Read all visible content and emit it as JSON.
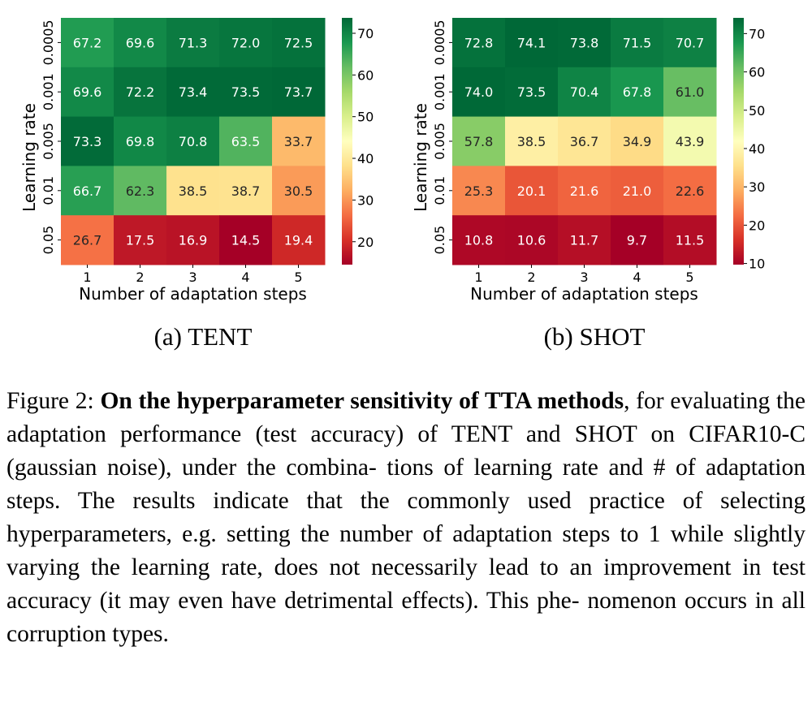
{
  "chart_data": [
    {
      "type": "heatmap",
      "caption": "(a) TENT",
      "xlabel": "Number of adaptation steps",
      "ylabel": "Learning rate",
      "x": [
        "1",
        "2",
        "3",
        "4",
        "5"
      ],
      "y": [
        "0.0005",
        "0.001",
        "0.005",
        "0.01",
        "0.05"
      ],
      "values": [
        [
          67.2,
          69.6,
          71.3,
          72.0,
          72.5
        ],
        [
          69.6,
          72.2,
          73.4,
          73.5,
          73.7
        ],
        [
          73.3,
          69.8,
          70.8,
          63.5,
          33.7
        ],
        [
          66.7,
          62.3,
          38.5,
          38.7,
          30.5
        ],
        [
          26.7,
          17.5,
          16.9,
          14.5,
          19.4
        ]
      ],
      "colorbar": {
        "min": 14.5,
        "max": 73.7,
        "ticks": [
          20,
          30,
          40,
          50,
          60,
          70
        ],
        "colormap": "RdYlGn"
      }
    },
    {
      "type": "heatmap",
      "caption": "(b) SHOT",
      "xlabel": "Number of adaptation steps",
      "ylabel": "Learning rate",
      "x": [
        "1",
        "2",
        "3",
        "4",
        "5"
      ],
      "y": [
        "0.0005",
        "0.001",
        "0.005",
        "0.01",
        "0.05"
      ],
      "values": [
        [
          72.8,
          74.1,
          73.8,
          71.5,
          70.7
        ],
        [
          74.0,
          73.5,
          70.4,
          67.8,
          61.0
        ],
        [
          57.8,
          38.5,
          36.7,
          34.9,
          43.9
        ],
        [
          25.3,
          20.1,
          21.6,
          21.0,
          22.6
        ],
        [
          10.8,
          10.6,
          11.7,
          9.7,
          11.5
        ]
      ],
      "colorbar": {
        "min": 9.7,
        "max": 74.1,
        "ticks": [
          10,
          20,
          30,
          40,
          50,
          60,
          70
        ],
        "colormap": "RdYlGn"
      }
    }
  ],
  "caption": {
    "prefix": "Figure 2: ",
    "bold": "On the hyperparameter sensitivity of TTA methods",
    "rest": ", for evaluating the adaptation performance (test accuracy) of TENT and SHOT on CIFAR10-C (gaussian noise), under the combina- tions of learning rate and # of adaptation steps. The results indicate that the commonly used practice of selecting hyperparameters, e.g. setting the number of adaptation steps to 1 while slightly varying the learning rate, does not necessarily lead to an improvement in test accuracy (it may even have detrimental effects). This phe- nomenon occurs in all corruption types."
  }
}
